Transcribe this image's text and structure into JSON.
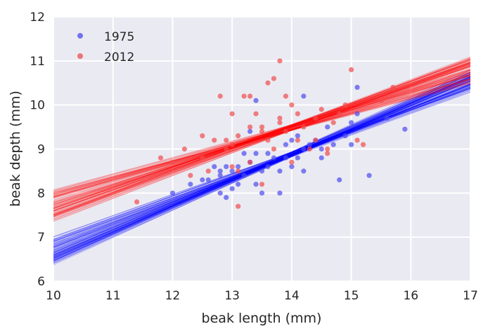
{
  "chart_data": {
    "type": "scatter",
    "xlabel": "beak length (mm)",
    "ylabel": "beak depth (mm)",
    "xlim": [
      10,
      17
    ],
    "ylim": [
      6,
      12
    ],
    "xticks": [
      "10",
      "11",
      "12",
      "13",
      "14",
      "15",
      "16",
      "17"
    ],
    "yticks": [
      "6",
      "7",
      "8",
      "9",
      "10",
      "11",
      "12"
    ],
    "grid": true,
    "legend_placement": "top-left",
    "colors": {
      "background": "#eaeaf2",
      "grid": "#ffffff",
      "s1975": "#4b4bf0",
      "s2012": "#f04b4b",
      "line1975": "#0000ff",
      "line2012": "#ff0000"
    },
    "series": [
      {
        "name": "1975",
        "points": [
          [
            12.0,
            8.0
          ],
          [
            12.3,
            8.2
          ],
          [
            12.5,
            8.3
          ],
          [
            12.6,
            8.3
          ],
          [
            12.7,
            8.6
          ],
          [
            12.8,
            8.0
          ],
          [
            12.8,
            8.5
          ],
          [
            12.9,
            7.9
          ],
          [
            12.9,
            8.6
          ],
          [
            13.0,
            8.1
          ],
          [
            13.0,
            8.5
          ],
          [
            13.1,
            8.6
          ],
          [
            13.1,
            8.2
          ],
          [
            13.2,
            8.4
          ],
          [
            13.3,
            8.7
          ],
          [
            13.4,
            8.2
          ],
          [
            13.4,
            8.9
          ],
          [
            13.5,
            8.0
          ],
          [
            13.5,
            8.5
          ],
          [
            13.6,
            8.6
          ],
          [
            13.6,
            8.9
          ],
          [
            13.7,
            8.8
          ],
          [
            13.8,
            8.5
          ],
          [
            13.8,
            8.0
          ],
          [
            13.9,
            8.8
          ],
          [
            13.9,
            9.1
          ],
          [
            14.0,
            8.6
          ],
          [
            14.0,
            9.2
          ],
          [
            14.1,
            8.8
          ],
          [
            14.1,
            9.3
          ],
          [
            14.2,
            9.0
          ],
          [
            14.2,
            8.5
          ],
          [
            14.3,
            9.1
          ],
          [
            14.4,
            9.2
          ],
          [
            14.5,
            9.0
          ],
          [
            14.6,
            9.5
          ],
          [
            14.7,
            9.1
          ],
          [
            14.8,
            8.3
          ],
          [
            14.9,
            9.3
          ],
          [
            15.0,
            9.6
          ],
          [
            15.1,
            9.8
          ],
          [
            15.1,
            10.4
          ],
          [
            15.3,
            8.4
          ],
          [
            15.6,
            9.7
          ],
          [
            15.9,
            9.45
          ],
          [
            13.4,
            10.1
          ],
          [
            14.2,
            10.2
          ],
          [
            13.3,
            9.4
          ],
          [
            14.5,
            8.8
          ],
          [
            15.0,
            9.1
          ],
          [
            13.2,
            8.9
          ],
          [
            12.8,
            8.4
          ]
        ]
      },
      {
        "name": "2012",
        "points": [
          [
            11.4,
            7.8
          ],
          [
            11.8,
            8.8
          ],
          [
            12.0,
            8.7
          ],
          [
            12.2,
            9.0
          ],
          [
            12.3,
            8.4
          ],
          [
            12.5,
            8.8
          ],
          [
            12.6,
            8.5
          ],
          [
            12.7,
            9.2
          ],
          [
            12.8,
            10.2
          ],
          [
            12.9,
            9.0
          ],
          [
            13.0,
            9.1
          ],
          [
            13.0,
            9.8
          ],
          [
            13.1,
            9.3
          ],
          [
            13.1,
            8.5
          ],
          [
            13.2,
            10.2
          ],
          [
            13.3,
            9.5
          ],
          [
            13.3,
            8.7
          ],
          [
            13.4,
            9.8
          ],
          [
            13.5,
            9.5
          ],
          [
            13.5,
            8.2
          ],
          [
            13.6,
            10.5
          ],
          [
            13.6,
            9.2
          ],
          [
            13.7,
            10.6
          ],
          [
            13.7,
            9.0
          ],
          [
            13.8,
            11.0
          ],
          [
            13.8,
            9.6
          ],
          [
            13.9,
            10.2
          ],
          [
            13.9,
            9.4
          ],
          [
            14.0,
            10.0
          ],
          [
            14.0,
            8.7
          ],
          [
            14.1,
            9.8
          ],
          [
            14.2,
            9.5
          ],
          [
            14.3,
            9.0
          ],
          [
            14.4,
            9.7
          ],
          [
            14.5,
            9.9
          ],
          [
            14.6,
            9.0
          ],
          [
            14.7,
            9.6
          ],
          [
            14.8,
            9.8
          ],
          [
            14.9,
            10.0
          ],
          [
            15.0,
            10.8
          ],
          [
            15.1,
            9.2
          ],
          [
            15.2,
            9.1
          ],
          [
            15.5,
            10.1
          ],
          [
            15.7,
            10.4
          ],
          [
            13.1,
            7.7
          ],
          [
            12.5,
            9.3
          ],
          [
            14.1,
            9.2
          ],
          [
            13.5,
            9.4
          ],
          [
            14.4,
            9.2
          ],
          [
            13.0,
            8.6
          ],
          [
            12.9,
            9.2
          ],
          [
            14.6,
            8.9
          ],
          [
            13.8,
            9.7
          ],
          [
            13.3,
            10.2
          ]
        ]
      }
    ],
    "bootstrap_lines": {
      "1975": {
        "slope_range": [
          0.48,
          0.62
        ],
        "at_x14_range": [
          8.82,
          8.94
        ]
      },
      "2012": {
        "slope_range": [
          0.35,
          0.52
        ],
        "at_x14_range": [
          9.42,
          9.56
        ]
      }
    }
  }
}
